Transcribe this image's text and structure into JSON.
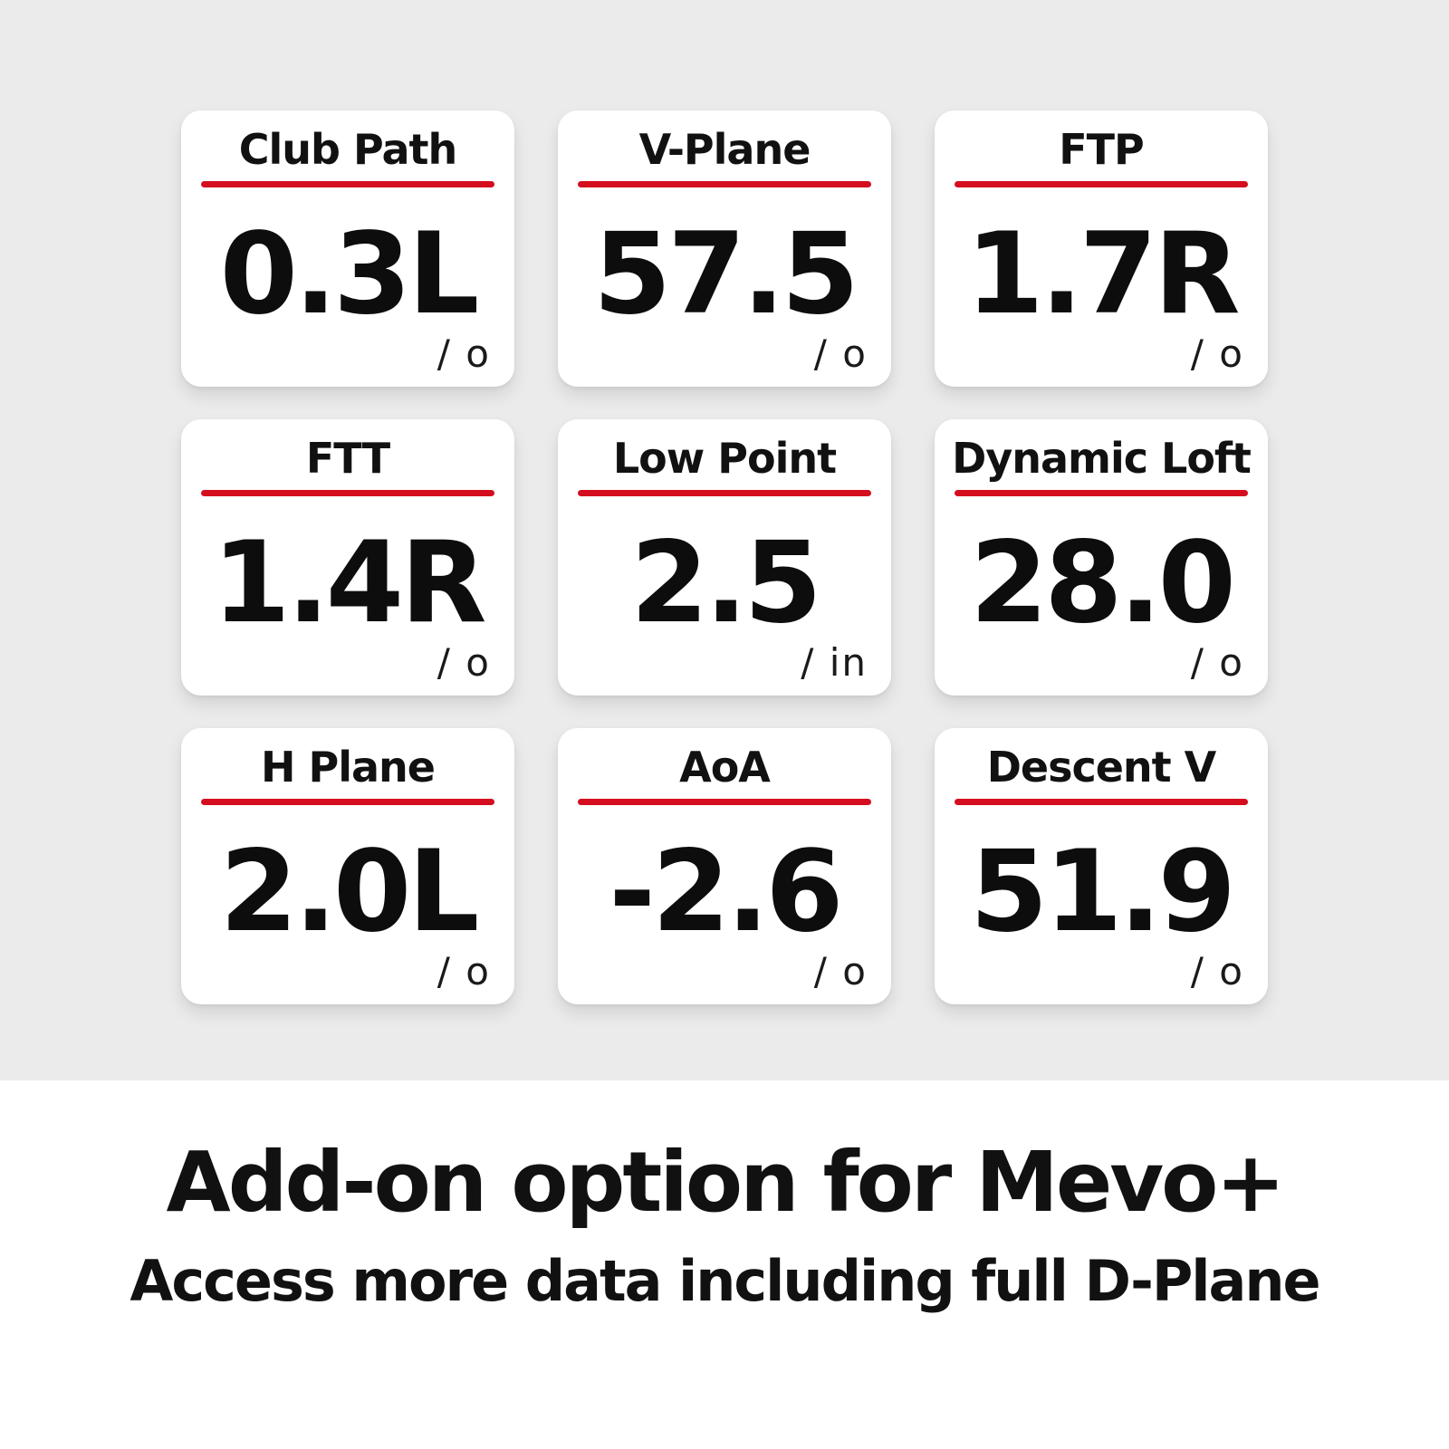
{
  "theme": {
    "background_gray": "#ebebeb",
    "card_background": "#ffffff",
    "accent_red": "#d40e1f",
    "text_color": "#111111"
  },
  "cards": [
    {
      "title": "Club Path",
      "value": "0.3L",
      "unit": "/ o"
    },
    {
      "title": "V-Plane",
      "value": "57.5",
      "unit": "/ o"
    },
    {
      "title": "FTP",
      "value": "1.7R",
      "unit": "/ o"
    },
    {
      "title": "FTT",
      "value": "1.4R",
      "unit": "/ o"
    },
    {
      "title": "Low Point",
      "value": "2.5",
      "unit": "/ in"
    },
    {
      "title": "Dynamic Loft",
      "value": "28.0",
      "unit": "/ o"
    },
    {
      "title": "H Plane",
      "value": "2.0L",
      "unit": "/ o"
    },
    {
      "title": "AoA",
      "value": "-2.6",
      "unit": "/ o"
    },
    {
      "title": "Descent V",
      "value": "51.9",
      "unit": "/ o"
    }
  ],
  "footer": {
    "title": "Add-on option for Mevo+",
    "subtitle": "Access more data including full D-Plane"
  }
}
